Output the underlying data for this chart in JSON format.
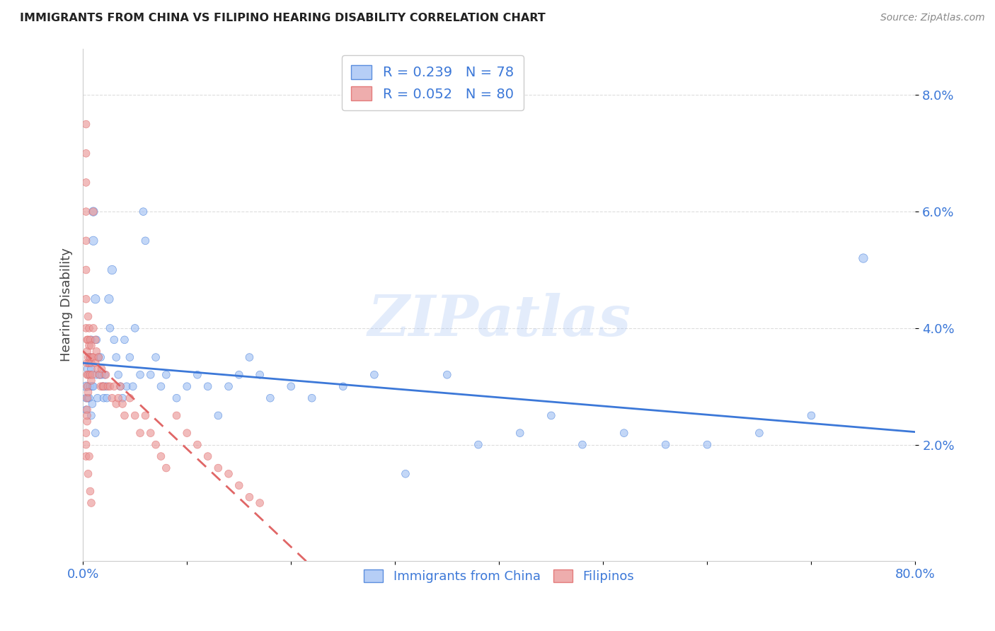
{
  "title": "IMMIGRANTS FROM CHINA VS FILIPINO HEARING DISABILITY CORRELATION CHART",
  "source": "Source: ZipAtlas.com",
  "ylabel": "Hearing Disability",
  "legend_entry1": "R = 0.239   N = 78",
  "legend_entry2": "R = 0.052   N = 80",
  "legend_label1": "Immigrants from China",
  "legend_label2": "Filipinos",
  "xlim": [
    0.0,
    0.8
  ],
  "ylim": [
    0.0,
    0.088
  ],
  "yticks": [
    0.02,
    0.04,
    0.06,
    0.08
  ],
  "ytick_labels": [
    "2.0%",
    "4.0%",
    "6.0%",
    "8.0%"
  ],
  "xticks": [
    0.0,
    0.1,
    0.2,
    0.3,
    0.4,
    0.5,
    0.6,
    0.7,
    0.8
  ],
  "xtick_labels": [
    "0.0%",
    "",
    "",
    "",
    "",
    "",
    "",
    "",
    "80.0%"
  ],
  "blue_color": "#a4c2f4",
  "pink_color": "#ea9999",
  "trend_blue": "#3c78d8",
  "trend_pink": "#e06666",
  "watermark": "ZIPatlas",
  "china_x": [
    0.003,
    0.003,
    0.003,
    0.005,
    0.005,
    0.005,
    0.006,
    0.006,
    0.007,
    0.007,
    0.008,
    0.008,
    0.008,
    0.009,
    0.009,
    0.01,
    0.01,
    0.01,
    0.012,
    0.012,
    0.013,
    0.013,
    0.014,
    0.015,
    0.016,
    0.017,
    0.018,
    0.019,
    0.02,
    0.021,
    0.022,
    0.023,
    0.025,
    0.026,
    0.028,
    0.03,
    0.032,
    0.034,
    0.036,
    0.038,
    0.04,
    0.042,
    0.045,
    0.048,
    0.05,
    0.055,
    0.058,
    0.06,
    0.065,
    0.07,
    0.075,
    0.08,
    0.09,
    0.1,
    0.11,
    0.12,
    0.13,
    0.14,
    0.15,
    0.16,
    0.17,
    0.18,
    0.2,
    0.22,
    0.25,
    0.28,
    0.31,
    0.35,
    0.38,
    0.42,
    0.45,
    0.48,
    0.52,
    0.56,
    0.6,
    0.65,
    0.7,
    0.75
  ],
  "china_y": [
    0.03,
    0.028,
    0.026,
    0.033,
    0.03,
    0.028,
    0.032,
    0.028,
    0.035,
    0.03,
    0.038,
    0.033,
    0.025,
    0.03,
    0.027,
    0.06,
    0.055,
    0.03,
    0.045,
    0.022,
    0.038,
    0.032,
    0.028,
    0.035,
    0.032,
    0.035,
    0.032,
    0.03,
    0.028,
    0.032,
    0.03,
    0.028,
    0.045,
    0.04,
    0.05,
    0.038,
    0.035,
    0.032,
    0.03,
    0.028,
    0.038,
    0.03,
    0.035,
    0.03,
    0.04,
    0.032,
    0.06,
    0.055,
    0.032,
    0.035,
    0.03,
    0.032,
    0.028,
    0.03,
    0.032,
    0.03,
    0.025,
    0.03,
    0.032,
    0.035,
    0.032,
    0.028,
    0.03,
    0.028,
    0.03,
    0.032,
    0.015,
    0.032,
    0.02,
    0.022,
    0.025,
    0.02,
    0.022,
    0.02,
    0.02,
    0.022,
    0.025,
    0.052
  ],
  "china_size": [
    80,
    60,
    60,
    80,
    60,
    60,
    60,
    60,
    60,
    60,
    60,
    60,
    60,
    60,
    60,
    80,
    80,
    60,
    80,
    60,
    60,
    60,
    60,
    60,
    60,
    60,
    60,
    60,
    60,
    60,
    60,
    60,
    80,
    60,
    80,
    60,
    60,
    60,
    60,
    60,
    60,
    60,
    60,
    60,
    60,
    60,
    60,
    60,
    60,
    60,
    60,
    60,
    60,
    60,
    60,
    60,
    60,
    60,
    60,
    60,
    60,
    60,
    60,
    60,
    60,
    60,
    60,
    60,
    60,
    60,
    60,
    60,
    60,
    60,
    60,
    60,
    60,
    80
  ],
  "filipinos_x": [
    0.003,
    0.003,
    0.003,
    0.003,
    0.003,
    0.003,
    0.003,
    0.003,
    0.004,
    0.004,
    0.004,
    0.004,
    0.004,
    0.004,
    0.004,
    0.004,
    0.005,
    0.005,
    0.005,
    0.005,
    0.005,
    0.006,
    0.006,
    0.006,
    0.007,
    0.007,
    0.007,
    0.008,
    0.008,
    0.008,
    0.009,
    0.009,
    0.01,
    0.01,
    0.01,
    0.012,
    0.012,
    0.013,
    0.014,
    0.015,
    0.016,
    0.017,
    0.018,
    0.019,
    0.02,
    0.022,
    0.024,
    0.026,
    0.028,
    0.03,
    0.032,
    0.034,
    0.036,
    0.038,
    0.04,
    0.045,
    0.05,
    0.055,
    0.06,
    0.065,
    0.07,
    0.075,
    0.08,
    0.09,
    0.1,
    0.11,
    0.12,
    0.13,
    0.14,
    0.15,
    0.16,
    0.17,
    0.003,
    0.003,
    0.003,
    0.004,
    0.005,
    0.006,
    0.007,
    0.008
  ],
  "filipinos_y": [
    0.075,
    0.07,
    0.065,
    0.06,
    0.055,
    0.05,
    0.045,
    0.04,
    0.038,
    0.036,
    0.034,
    0.032,
    0.03,
    0.028,
    0.026,
    0.024,
    0.042,
    0.038,
    0.035,
    0.032,
    0.029,
    0.04,
    0.037,
    0.034,
    0.038,
    0.035,
    0.032,
    0.037,
    0.034,
    0.031,
    0.035,
    0.032,
    0.06,
    0.04,
    0.035,
    0.038,
    0.034,
    0.036,
    0.033,
    0.035,
    0.032,
    0.03,
    0.033,
    0.03,
    0.03,
    0.032,
    0.03,
    0.03,
    0.028,
    0.03,
    0.027,
    0.028,
    0.03,
    0.027,
    0.025,
    0.028,
    0.025,
    0.022,
    0.025,
    0.022,
    0.02,
    0.018,
    0.016,
    0.025,
    0.022,
    0.02,
    0.018,
    0.016,
    0.015,
    0.013,
    0.011,
    0.01,
    0.022,
    0.02,
    0.018,
    0.025,
    0.015,
    0.018,
    0.012,
    0.01
  ],
  "filipinos_size": [
    60,
    60,
    60,
    60,
    60,
    60,
    60,
    60,
    60,
    60,
    60,
    60,
    60,
    60,
    60,
    60,
    60,
    60,
    60,
    60,
    60,
    60,
    60,
    60,
    60,
    60,
    60,
    60,
    60,
    60,
    60,
    60,
    60,
    60,
    60,
    60,
    60,
    60,
    60,
    60,
    60,
    60,
    60,
    60,
    60,
    60,
    60,
    60,
    60,
    60,
    60,
    60,
    60,
    60,
    60,
    60,
    60,
    60,
    60,
    60,
    60,
    60,
    60,
    60,
    60,
    60,
    60,
    60,
    60,
    60,
    60,
    60,
    60,
    60,
    60,
    60,
    60,
    60,
    60,
    60
  ]
}
